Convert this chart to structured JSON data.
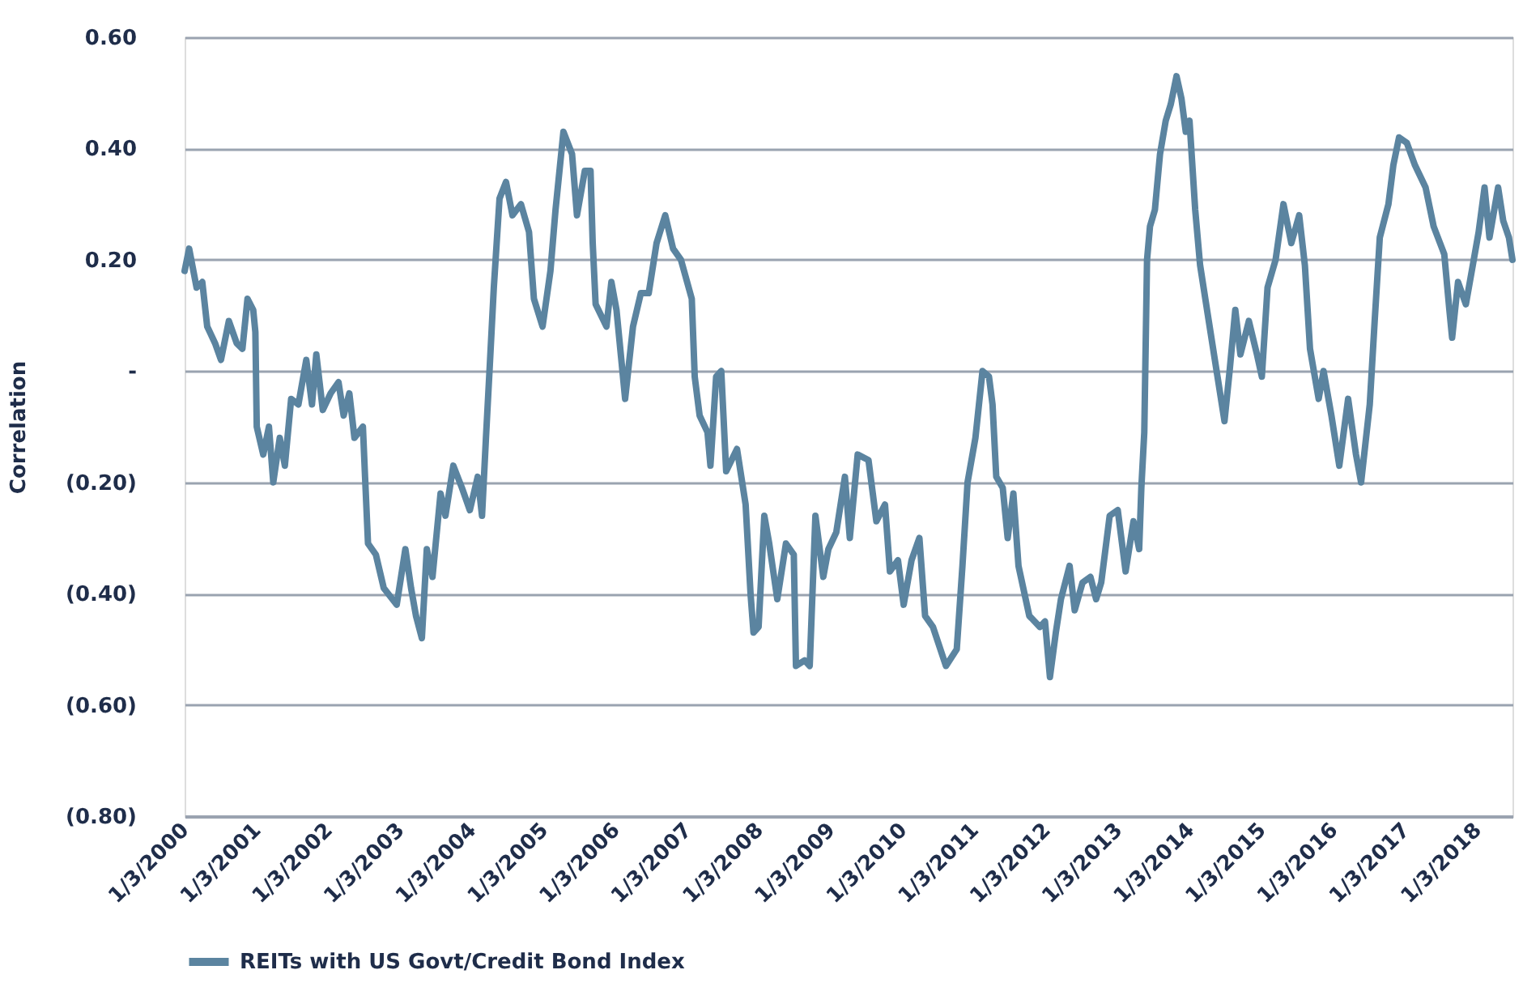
{
  "chart_data": {
    "type": "line",
    "ylabel": "Correlation",
    "legend": "bottom",
    "grid": "y",
    "line_style": "solid",
    "xlim": [
      "2000-01-03",
      "2018-07-02"
    ],
    "xticks": [
      {
        "value": "2000-01-03",
        "label": "1/3/2000"
      },
      {
        "value": "2001-01-03",
        "label": "1/3/2001"
      },
      {
        "value": "2002-01-03",
        "label": "1/3/2002"
      },
      {
        "value": "2003-01-03",
        "label": "1/3/2003"
      },
      {
        "value": "2004-01-03",
        "label": "1/3/2004"
      },
      {
        "value": "2005-01-03",
        "label": "1/3/2005"
      },
      {
        "value": "2006-01-03",
        "label": "1/3/2006"
      },
      {
        "value": "2007-01-03",
        "label": "1/3/2007"
      },
      {
        "value": "2008-01-03",
        "label": "1/3/2008"
      },
      {
        "value": "2009-01-03",
        "label": "1/3/2009"
      },
      {
        "value": "2010-01-03",
        "label": "1/3/2010"
      },
      {
        "value": "2011-01-03",
        "label": "1/3/2011"
      },
      {
        "value": "2012-01-03",
        "label": "1/3/2012"
      },
      {
        "value": "2013-01-03",
        "label": "1/3/2013"
      },
      {
        "value": "2014-01-03",
        "label": "1/3/2014"
      },
      {
        "value": "2015-01-03",
        "label": "1/3/2015"
      },
      {
        "value": "2016-01-03",
        "label": "1/3/2016"
      },
      {
        "value": "2017-01-03",
        "label": "1/3/2017"
      },
      {
        "value": "2018-01-03",
        "label": "1/3/2018"
      }
    ],
    "ylim": [
      -0.8,
      0.6
    ],
    "yticks": [
      {
        "value": -0.8,
        "label": "(0.80)"
      },
      {
        "value": -0.6,
        "label": "(0.60)"
      },
      {
        "value": -0.4,
        "label": "(0.40)"
      },
      {
        "value": -0.2,
        "label": "(0.20)"
      },
      {
        "value": 0,
        "label": "-"
      },
      {
        "value": 0.2,
        "label": "0.20"
      },
      {
        "value": 0.4,
        "label": "0.40"
      },
      {
        "value": 0.6,
        "label": "0.60"
      }
    ],
    "x": [
      "2000-01-03",
      "2000-01-26",
      "2000-03-04",
      "2000-04-02",
      "2000-04-27",
      "2000-06-06",
      "2000-07-06",
      "2000-08-15",
      "2000-09-24",
      "2000-10-23",
      "2000-11-18",
      "2000-12-17",
      "2000-12-28",
      "2001-01-04",
      "2001-02-06",
      "2001-03-07",
      "2001-03-29",
      "2001-05-01",
      "2001-05-27",
      "2001-06-28",
      "2001-08-04",
      "2001-09-13",
      "2001-10-12",
      "2001-11-03",
      "2001-12-06",
      "2002-01-15",
      "2002-02-24",
      "2002-03-22",
      "2002-04-20",
      "2002-05-16",
      "2002-06-28",
      "2002-07-09",
      "2002-07-24",
      "2002-09-02",
      "2002-10-12",
      "2002-12-17",
      "2003-01-30",
      "2003-02-28",
      "2003-03-25",
      "2003-04-24",
      "2003-05-19",
      "2003-06-17",
      "2003-07-28",
      "2003-08-22",
      "2003-10-01",
      "2003-11-14",
      "2003-12-24",
      "2004-02-02",
      "2004-02-24",
      "2004-03-15",
      "2004-04-05",
      "2004-04-24",
      "2004-05-23",
      "2004-06-25",
      "2004-07-28",
      "2004-09-09",
      "2004-10-20",
      "2004-11-14",
      "2004-12-28",
      "2005-02-06",
      "2005-03-04",
      "2005-04-13",
      "2005-05-27",
      "2005-06-21",
      "2005-07-31",
      "2005-08-29",
      "2005-09-09",
      "2005-09-24",
      "2005-11-18",
      "2005-12-13",
      "2006-01-08",
      "2006-02-21",
      "2006-04-02",
      "2006-05-12",
      "2006-06-21",
      "2006-07-31",
      "2006-09-13",
      "2006-10-23",
      "2006-12-02",
      "2007-01-26",
      "2007-02-10",
      "2007-03-07",
      "2007-04-16",
      "2007-05-01",
      "2007-05-30",
      "2007-06-25",
      "2007-07-20",
      "2007-09-13",
      "2007-10-27",
      "2007-11-21",
      "2007-12-06",
      "2008-01-01",
      "2008-01-30",
      "2008-02-24",
      "2008-04-05",
      "2008-05-19",
      "2008-06-28",
      "2008-07-09",
      "2008-08-22",
      "2008-09-17",
      "2008-10-16",
      "2008-11-25",
      "2008-12-21",
      "2009-01-30",
      "2009-03-15",
      "2009-04-09",
      "2009-05-19",
      "2009-07-13",
      "2009-08-22",
      "2009-10-05",
      "2009-10-30",
      "2009-12-10",
      "2010-01-08",
      "2010-02-17",
      "2010-03-29",
      "2010-04-27",
      "2010-06-06",
      "2010-08-11",
      "2010-10-05",
      "2010-11-03",
      "2010-11-29",
      "2011-01-08",
      "2011-02-13",
      "2011-03-18",
      "2011-04-05",
      "2011-04-24",
      "2011-05-27",
      "2011-06-21",
      "2011-07-20",
      "2011-08-15",
      "2011-10-09",
      "2011-12-02",
      "2011-12-28",
      "2012-01-22",
      "2012-02-21",
      "2012-03-18",
      "2012-05-01",
      "2012-05-27",
      "2012-07-06",
      "2012-08-15",
      "2012-09-13",
      "2012-10-09",
      "2012-11-21",
      "2013-01-01",
      "2013-02-10",
      "2013-03-22",
      "2013-04-20",
      "2013-05-01",
      "2013-05-16",
      "2013-05-30",
      "2013-06-14",
      "2013-07-09",
      "2013-08-04",
      "2013-09-02",
      "2013-09-28",
      "2013-10-27",
      "2013-11-21",
      "2013-12-13",
      "2014-01-01",
      "2014-01-30",
      "2014-02-24",
      "2014-04-09",
      "2014-05-19",
      "2014-06-28",
      "2014-07-24",
      "2014-08-22",
      "2014-09-17",
      "2014-10-30",
      "2014-12-10",
      "2015-01-04",
      "2015-02-02",
      "2015-03-15",
      "2015-04-24",
      "2015-06-03",
      "2015-07-13",
      "2015-08-11",
      "2015-09-06",
      "2015-10-20",
      "2015-11-14",
      "2015-12-24",
      "2016-02-02",
      "2016-03-18",
      "2016-04-27",
      "2016-05-23",
      "2016-07-06",
      "2016-07-31",
      "2016-08-26",
      "2016-10-09",
      "2016-11-03",
      "2016-12-02",
      "2017-01-11",
      "2017-02-21",
      "2017-04-16",
      "2017-05-27",
      "2017-07-20",
      "2017-08-15",
      "2017-08-29",
      "2017-09-28",
      "2017-11-07",
      "2017-12-17",
      "2018-01-11",
      "2018-02-10",
      "2018-03-07",
      "2018-04-20",
      "2018-05-16",
      "2018-06-14",
      "2018-07-02"
    ],
    "series": [
      {
        "name": "REITs with US Govt/Credit Bond Index",
        "color": "#5b84a0",
        "values": [
          0.18,
          0.22,
          0.15,
          0.16,
          0.08,
          0.05,
          0.02,
          0.09,
          0.05,
          0.04,
          0.13,
          0.11,
          0.07,
          -0.1,
          -0.15,
          -0.1,
          -0.2,
          -0.12,
          -0.17,
          -0.05,
          -0.06,
          0.02,
          -0.06,
          0.03,
          -0.07,
          -0.04,
          -0.02,
          -0.08,
          -0.04,
          -0.12,
          -0.1,
          -0.19,
          -0.31,
          -0.33,
          -0.39,
          -0.42,
          -0.32,
          -0.39,
          -0.44,
          -0.48,
          -0.32,
          -0.37,
          -0.22,
          -0.26,
          -0.17,
          -0.21,
          -0.25,
          -0.19,
          -0.26,
          -0.12,
          0.02,
          0.15,
          0.31,
          0.34,
          0.28,
          0.3,
          0.25,
          0.13,
          0.08,
          0.18,
          0.29,
          0.43,
          0.39,
          0.28,
          0.36,
          0.36,
          0.23,
          0.12,
          0.08,
          0.16,
          0.11,
          -0.05,
          0.08,
          0.14,
          0.14,
          0.23,
          0.28,
          0.22,
          0.2,
          0.13,
          -0.01,
          -0.08,
          -0.11,
          -0.17,
          -0.01,
          0.0,
          -0.18,
          -0.14,
          -0.24,
          -0.4,
          -0.47,
          -0.46,
          -0.26,
          -0.31,
          -0.41,
          -0.31,
          -0.33,
          -0.53,
          -0.52,
          -0.53,
          -0.26,
          -0.37,
          -0.32,
          -0.29,
          -0.19,
          -0.3,
          -0.15,
          -0.16,
          -0.27,
          -0.24,
          -0.36,
          -0.34,
          -0.42,
          -0.34,
          -0.3,
          -0.44,
          -0.46,
          -0.53,
          -0.5,
          -0.35,
          -0.2,
          -0.12,
          0.0,
          -0.01,
          -0.06,
          -0.19,
          -0.21,
          -0.3,
          -0.22,
          -0.35,
          -0.44,
          -0.46,
          -0.45,
          -0.55,
          -0.47,
          -0.41,
          -0.35,
          -0.43,
          -0.38,
          -0.37,
          -0.41,
          -0.38,
          -0.26,
          -0.25,
          -0.36,
          -0.27,
          -0.32,
          -0.21,
          -0.11,
          0.2,
          0.26,
          0.29,
          0.39,
          0.45,
          0.48,
          0.53,
          0.49,
          0.43,
          0.45,
          0.29,
          0.19,
          0.09,
          0.0,
          -0.09,
          0.0,
          0.11,
          0.03,
          0.09,
          0.03,
          -0.01,
          0.15,
          0.2,
          0.3,
          0.23,
          0.28,
          0.19,
          0.04,
          -0.05,
          0.0,
          -0.08,
          -0.17,
          -0.05,
          -0.15,
          -0.2,
          -0.06,
          0.09,
          0.24,
          0.3,
          0.37,
          0.42,
          0.41,
          0.37,
          0.33,
          0.26,
          0.21,
          0.11,
          0.06,
          0.16,
          0.12,
          0.2,
          0.25,
          0.33,
          0.24,
          0.33,
          0.27,
          0.24,
          0.2
        ]
      }
    ]
  }
}
